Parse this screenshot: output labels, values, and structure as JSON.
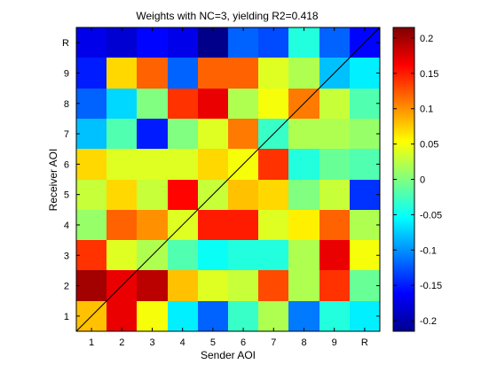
{
  "chart_data": {
    "type": "heatmap",
    "title": "Weights with NC=3, yielding R2=0.418",
    "xlabel": "Sender AOI",
    "ylabel": "Receiver AOI",
    "x_categories": [
      "1",
      "2",
      "3",
      "4",
      "5",
      "6",
      "7",
      "8",
      "9",
      "R"
    ],
    "y_categories": [
      "1",
      "2",
      "3",
      "4",
      "5",
      "6",
      "7",
      "8",
      "9",
      "R"
    ],
    "values_top_to_bottom": [
      [
        -0.17,
        -0.18,
        -0.16,
        -0.17,
        -0.21,
        -0.12,
        -0.13,
        -0.04,
        -0.12,
        -0.16
      ],
      [
        -0.15,
        0.07,
        0.12,
        -0.12,
        0.12,
        0.12,
        0.04,
        0.02,
        -0.08,
        -0.06
      ],
      [
        -0.12,
        -0.07,
        0.0,
        0.14,
        0.17,
        0.02,
        0.05,
        0.11,
        0.03,
        -0.02
      ],
      [
        -0.08,
        -0.02,
        -0.15,
        0.0,
        0.04,
        0.11,
        -0.03,
        0.02,
        0.02,
        0.01
      ],
      [
        0.07,
        0.04,
        0.04,
        0.04,
        0.07,
        0.05,
        0.14,
        -0.04,
        -0.01,
        -0.02
      ],
      [
        0.03,
        0.07,
        0.03,
        0.16,
        0.03,
        0.08,
        0.07,
        0.0,
        0.03,
        -0.14
      ],
      [
        0.01,
        0.12,
        0.1,
        0.04,
        0.15,
        0.15,
        0.04,
        0.06,
        0.12,
        0.02
      ],
      [
        0.14,
        0.04,
        0.02,
        -0.02,
        -0.05,
        -0.04,
        -0.04,
        0.02,
        0.17,
        0.05
      ],
      [
        0.2,
        0.17,
        0.19,
        0.08,
        0.04,
        0.03,
        0.13,
        0.02,
        0.14,
        -0.01
      ],
      [
        0.08,
        0.17,
        0.05,
        -0.06,
        -0.12,
        -0.03,
        0.02,
        -0.11,
        -0.04,
        -0.06
      ]
    ],
    "clim": [
      -0.215,
      0.215
    ],
    "colormap": "jet",
    "colorbar_ticks": [
      0.2,
      0.15,
      0.1,
      0.05,
      0,
      -0.05,
      -0.1,
      -0.15,
      -0.2
    ],
    "colorbar_tick_labels": [
      "0.2",
      "0.15",
      "0.1",
      "0.05",
      "0",
      "-0.05",
      "-0.1",
      "-0.15",
      "-0.2"
    ],
    "diagonal_line": true,
    "grid": false
  }
}
